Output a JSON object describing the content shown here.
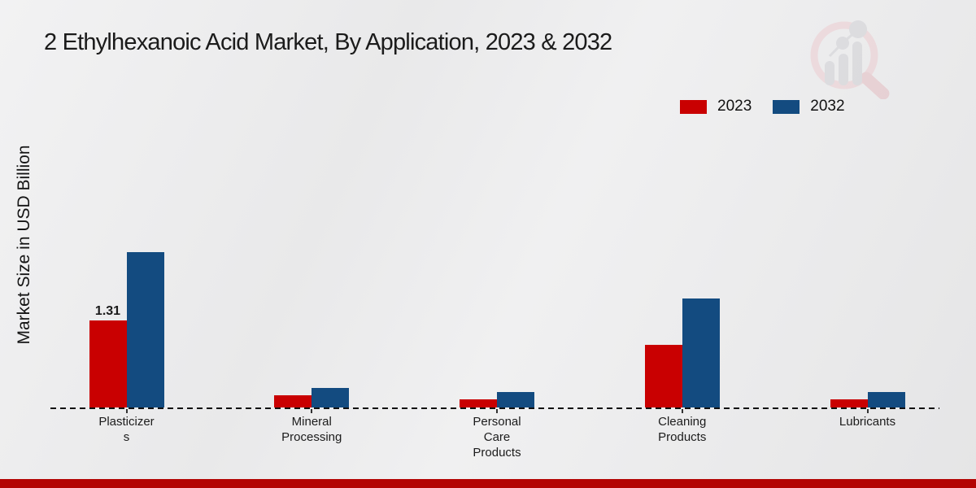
{
  "title": "2 Ethylhexanoic Acid Market, By Application, 2023 & 2032",
  "ylabel": "Market Size in USD Billion",
  "colors": {
    "series_2023": "#c90001",
    "series_2032": "#134b80",
    "bottom_bar": "#b30403",
    "axis_dash": "#111111"
  },
  "legend": {
    "items": [
      {
        "label": "2023",
        "color": "#c90001"
      },
      {
        "label": "2032",
        "color": "#134b80"
      }
    ]
  },
  "chart_data": {
    "type": "bar",
    "categories": [
      "Plasticizer\ns",
      "Mineral\nProcessing",
      "Personal\nCare\nProducts",
      "Cleaning\nProducts",
      "Lubricants"
    ],
    "series": [
      {
        "name": "2023",
        "color": "#c90001",
        "values": [
          1.31,
          0.18,
          0.12,
          0.94,
          0.12
        ]
      },
      {
        "name": "2032",
        "color": "#134b80",
        "values": [
          2.34,
          0.3,
          0.23,
          1.64,
          0.23
        ]
      }
    ],
    "annotations": [
      {
        "series_index": 0,
        "category_index": 0,
        "text": "1.31"
      }
    ],
    "title": "2 Ethylhexanoic Acid Market, By Application, 2023 & 2032",
    "xlabel": "",
    "ylabel": "Market Size in USD Billion",
    "ylim": [
      0,
      3
    ],
    "grid": false,
    "legend_position": "top-right",
    "baseline_style": "dashed"
  }
}
